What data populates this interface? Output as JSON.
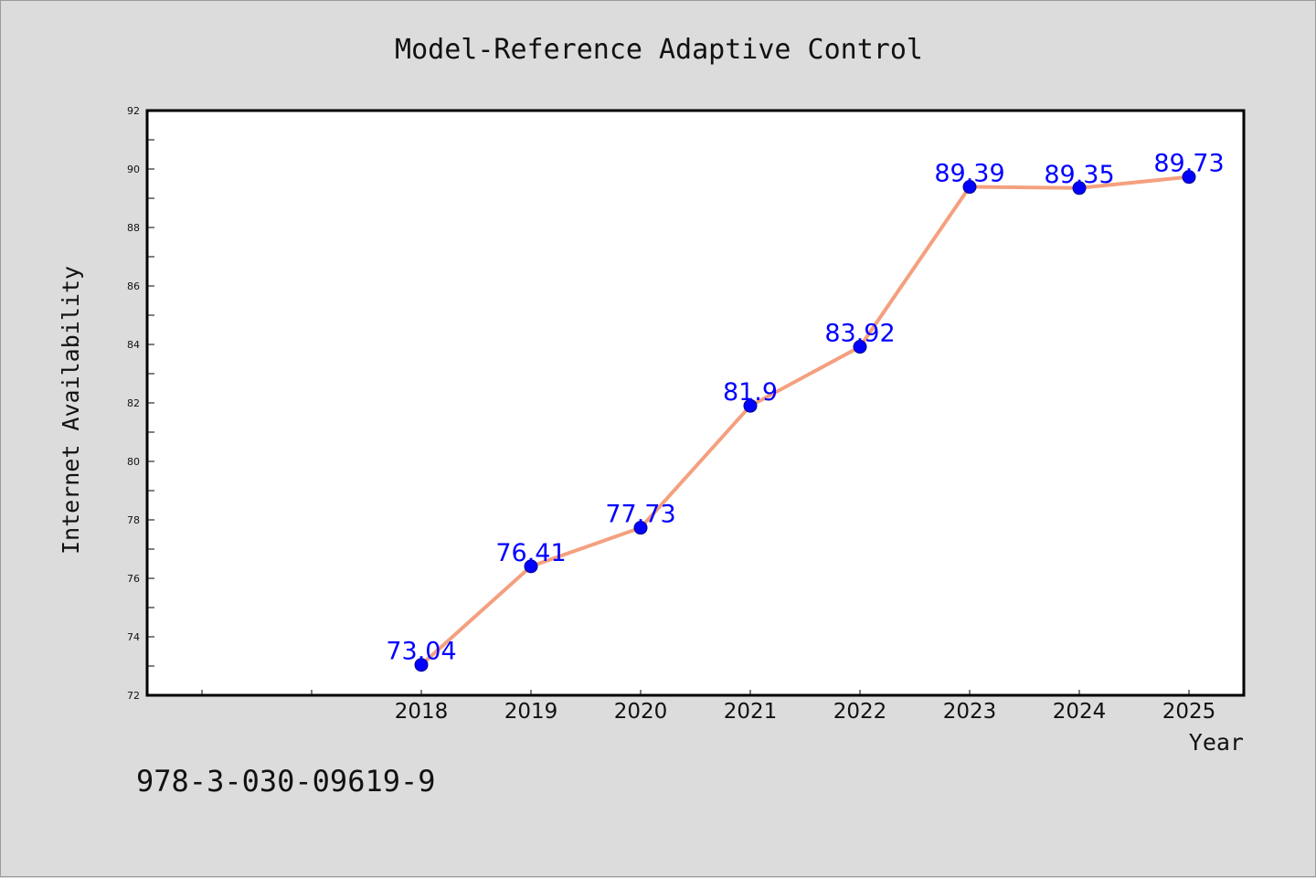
{
  "chart_data": {
    "type": "line",
    "title": "Model-Reference Adaptive Control",
    "xlabel": "Year",
    "ylabel": "Internet Availability",
    "x": [
      "2018",
      "2019",
      "2020",
      "2021",
      "2022",
      "2023",
      "2024",
      "2025"
    ],
    "series": [
      {
        "values": [
          73.04,
          76.41,
          77.73,
          81.9,
          83.92,
          89.39,
          89.35,
          89.73
        ],
        "data_labels": [
          "73.04",
          "76.41",
          "77.73",
          "81.9",
          "83.92",
          "89.39",
          "89.35",
          "89.73"
        ]
      }
    ],
    "ylim": [
      72,
      92
    ],
    "y_ticks": [
      "72",
      "74",
      "76",
      "78",
      "80",
      "82",
      "84",
      "86",
      "88",
      "90",
      "92"
    ],
    "grid": false,
    "legend": "none",
    "colors": {
      "line": "#f4a07f",
      "marker": "#0000ff",
      "data_label": "#0000ff",
      "plot_background": "#ffffff",
      "figure_background": "#dcdcdc"
    },
    "footer": "978-3-030-09619-9"
  }
}
